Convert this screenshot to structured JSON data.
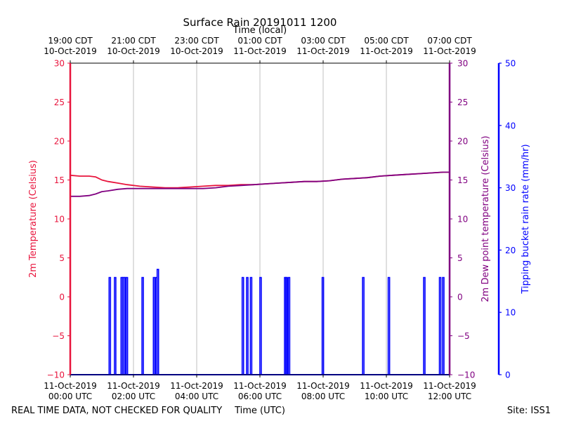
{
  "chart_data": {
    "type": "line",
    "title": "Surface Rain 20191011 1200",
    "top_xlabel": "Time (local)",
    "xlabel": "Time (UTC)",
    "ylabel_left": "2m Temperature (Celsius)",
    "ylabel_right": "2m Dew point temperature (Celsius)",
    "ylabel_far_right": "Tipping bucket rain rate (mm/hr)",
    "footer_left": "REAL TIME DATA, NOT CHECKED FOR QUALITY",
    "footer_right": "Site: ISS1",
    "x_unit": "hours since 11-Oct-2019 00:00 UTC",
    "xlim": [
      0,
      12
    ],
    "ylim_temperature": [
      -10,
      30
    ],
    "ylim_rain": [
      0,
      50
    ],
    "grid": "vertical",
    "colors": {
      "temperature": "#e8143c",
      "dewpoint": "#800080",
      "rain": "#0000ff",
      "grid": "#b0b0b0"
    },
    "bottom_ticks": [
      {
        "x": 0,
        "line1": "11-Oct-2019",
        "line2": "00:00 UTC"
      },
      {
        "x": 2,
        "line1": "11-Oct-2019",
        "line2": "02:00 UTC"
      },
      {
        "x": 4,
        "line1": "11-Oct-2019",
        "line2": "04:00 UTC"
      },
      {
        "x": 6,
        "line1": "11-Oct-2019",
        "line2": "06:00 UTC"
      },
      {
        "x": 8,
        "line1": "11-Oct-2019",
        "line2": "08:00 UTC"
      },
      {
        "x": 10,
        "line1": "11-Oct-2019",
        "line2": "10:00 UTC"
      },
      {
        "x": 12,
        "line1": "11-Oct-2019",
        "line2": "12:00 UTC"
      }
    ],
    "top_ticks": [
      {
        "x": 0,
        "line1": "19:00 CDT",
        "line2": "10-Oct-2019"
      },
      {
        "x": 2,
        "line1": "21:00 CDT",
        "line2": "10-Oct-2019"
      },
      {
        "x": 4,
        "line1": "23:00 CDT",
        "line2": "10-Oct-2019"
      },
      {
        "x": 6,
        "line1": "01:00 CDT",
        "line2": "11-Oct-2019"
      },
      {
        "x": 8,
        "line1": "03:00 CDT",
        "line2": "11-Oct-2019"
      },
      {
        "x": 10,
        "line1": "05:00 CDT",
        "line2": "11-Oct-2019"
      },
      {
        "x": 12,
        "line1": "07:00 CDT",
        "line2": "11-Oct-2019"
      }
    ],
    "temp_ticks": [
      -10,
      -5,
      0,
      5,
      10,
      15,
      20,
      25,
      30
    ],
    "temp_tick_labels": [
      "−10",
      "−5",
      "0",
      "5",
      "10",
      "15",
      "20",
      "25",
      "30"
    ],
    "rain_ticks": [
      0,
      10,
      20,
      30,
      40,
      50
    ],
    "rain_tick_labels": [
      "0",
      "10",
      "20",
      "30",
      "40",
      "50"
    ],
    "series": [
      {
        "name": "2m Temperature",
        "axis": "temperature",
        "x": [
          0,
          0.3,
          0.6,
          0.8,
          1.0,
          1.2,
          1.5,
          1.8,
          2.2,
          2.6,
          3.0,
          3.4,
          3.8,
          4.2,
          4.6,
          5.0,
          5.4,
          5.8,
          6.2,
          6.6,
          7.0,
          7.4,
          7.8,
          8.2,
          8.6,
          9.0,
          9.4,
          9.8,
          10.2,
          10.6,
          11.0,
          11.4,
          11.8,
          12.0
        ],
        "y": [
          15.6,
          15.5,
          15.5,
          15.4,
          15.0,
          14.8,
          14.6,
          14.4,
          14.2,
          14.1,
          14.0,
          14.0,
          14.1,
          14.2,
          14.3,
          14.3,
          14.4,
          14.4,
          14.5,
          14.6,
          14.7,
          14.8,
          14.8,
          14.9,
          15.1,
          15.2,
          15.3,
          15.5,
          15.6,
          15.7,
          15.8,
          15.9,
          16.0,
          16.0
        ]
      },
      {
        "name": "2m Dew point temperature",
        "axis": "temperature",
        "x": [
          0,
          0.3,
          0.6,
          0.8,
          1.0,
          1.2,
          1.5,
          1.8,
          2.2,
          2.6,
          3.0,
          3.4,
          3.8,
          4.2,
          4.6,
          5.0,
          5.4,
          5.8,
          6.2,
          6.6,
          7.0,
          7.4,
          7.8,
          8.2,
          8.6,
          9.0,
          9.4,
          9.8,
          10.2,
          10.6,
          11.0,
          11.4,
          11.8,
          12.0
        ],
        "y": [
          12.9,
          12.9,
          13.0,
          13.2,
          13.5,
          13.6,
          13.8,
          13.9,
          13.9,
          13.9,
          13.9,
          13.9,
          13.9,
          13.9,
          14.0,
          14.2,
          14.3,
          14.4,
          14.5,
          14.6,
          14.7,
          14.8,
          14.8,
          14.9,
          15.1,
          15.2,
          15.3,
          15.5,
          15.6,
          15.7,
          15.8,
          15.9,
          16.0,
          16.0
        ]
      },
      {
        "name": "Tipping bucket rain rate",
        "axis": "rain",
        "style": "spikes",
        "x": [
          1.25,
          1.42,
          1.63,
          1.68,
          1.73,
          1.79,
          2.29,
          2.65,
          2.72,
          2.77,
          5.46,
          5.6,
          5.72,
          6.02,
          6.8,
          6.84,
          6.92,
          7.99,
          9.27,
          10.08,
          11.2,
          11.7,
          11.8
        ],
        "y": [
          15.6,
          15.6,
          15.6,
          15.6,
          15.6,
          15.6,
          15.6,
          15.6,
          15.6,
          16.9,
          15.6,
          15.6,
          15.6,
          15.6,
          15.6,
          15.6,
          15.6,
          15.6,
          15.6,
          15.6,
          15.6,
          15.6,
          15.6
        ]
      }
    ]
  }
}
